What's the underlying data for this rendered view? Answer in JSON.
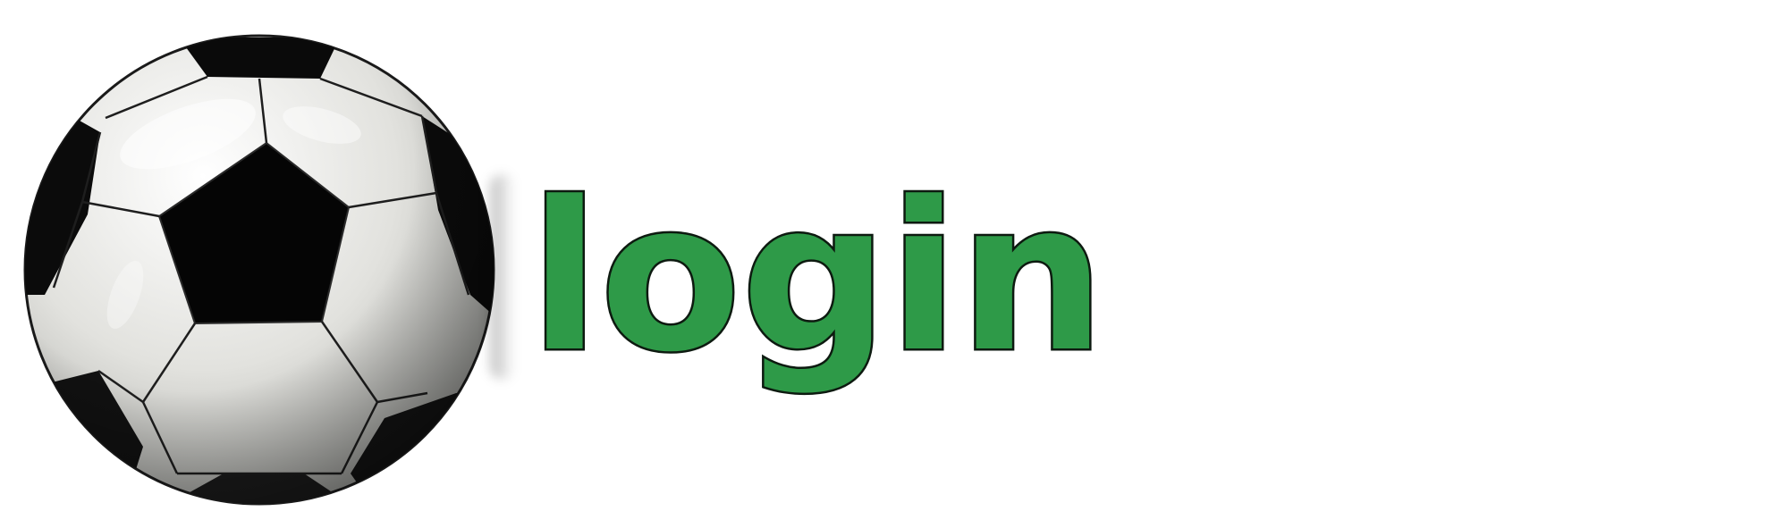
{
  "login": {
    "label": "login",
    "color": "#2e9a48",
    "outline_color": "#0d1a10"
  },
  "ball": {
    "icon": "soccer-ball-icon",
    "panel_color": "#e4e4e0",
    "patch_color": "#050505"
  }
}
